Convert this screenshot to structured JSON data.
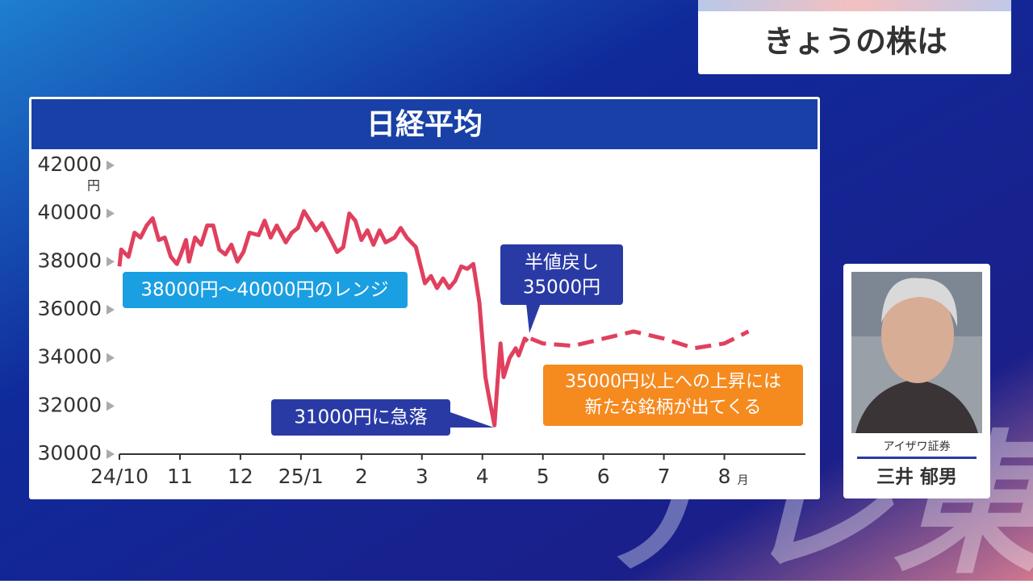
{
  "header": {
    "title": "きょうの株は"
  },
  "chart_data": {
    "type": "line",
    "title": "日経平均",
    "yunit": "円",
    "xunit": "月",
    "xlim": [
      0,
      11.3
    ],
    "xticks": [
      {
        "value": 0,
        "label": "24/10"
      },
      {
        "value": 1,
        "label": "11"
      },
      {
        "value": 2,
        "label": "12"
      },
      {
        "value": 3,
        "label": "25/1"
      },
      {
        "value": 4,
        "label": "2"
      },
      {
        "value": 5,
        "label": "3"
      },
      {
        "value": 6,
        "label": "4"
      },
      {
        "value": 7,
        "label": "5"
      },
      {
        "value": 8,
        "label": "6"
      },
      {
        "value": 9,
        "label": "7"
      },
      {
        "value": 10,
        "label": "8"
      }
    ],
    "ylim": [
      30000,
      42000
    ],
    "yticks": [
      30000,
      32000,
      34000,
      36000,
      38000,
      40000,
      42000
    ],
    "series": [
      {
        "color": "#e0405e",
        "style": "solid",
        "x": [
          0,
          0.03,
          0.15,
          0.25,
          0.35,
          0.45,
          0.55,
          0.65,
          0.75,
          0.85,
          0.95,
          1.0,
          1.1,
          1.15,
          1.25,
          1.35,
          1.45,
          1.55,
          1.65,
          1.75,
          1.85,
          1.95,
          2.05,
          2.15,
          2.3,
          2.4,
          2.5,
          2.6,
          2.75,
          2.85,
          2.95,
          3.05,
          3.15,
          3.25,
          3.35,
          3.5,
          3.6,
          3.7,
          3.8,
          3.9,
          4.0,
          4.1,
          4.2,
          4.3,
          4.4,
          4.55,
          4.65,
          4.75,
          4.9,
          5.0,
          5.05,
          5.15,
          5.25,
          5.35,
          5.45,
          5.55,
          5.65,
          5.75,
          5.85,
          5.95,
          6.05,
          6.1,
          6.2,
          6.25,
          6.3,
          6.35,
          6.45,
          6.55,
          6.6,
          6.7,
          6.75
        ],
        "values": [
          37800,
          38500,
          38200,
          39200,
          39000,
          39500,
          39800,
          38900,
          39000,
          38200,
          37900,
          38200,
          38900,
          38000,
          39000,
          38700,
          39500,
          39500,
          38500,
          38300,
          38700,
          38000,
          38400,
          39200,
          39100,
          39700,
          39000,
          39500,
          38800,
          39200,
          39400,
          40100,
          39700,
          39300,
          39600,
          38900,
          38400,
          38600,
          40000,
          39700,
          38900,
          39300,
          38700,
          39300,
          38800,
          39000,
          39400,
          39000,
          38600,
          37600,
          37100,
          37400,
          36900,
          37300,
          36900,
          37200,
          37800,
          37700,
          37900,
          36300,
          33200,
          32500,
          31200,
          33000,
          34600,
          33200,
          34000,
          34400,
          34100,
          34800,
          34700
        ]
      },
      {
        "color": "#e0405e",
        "style": "dashed",
        "x": [
          6.8,
          7.0,
          7.5,
          8.0,
          8.5,
          9.0,
          9.5,
          10.0,
          10.4
        ],
        "values": [
          34800,
          34600,
          34500,
          34800,
          35100,
          34800,
          34400,
          34600,
          35100
        ]
      }
    ],
    "annotations": {
      "range": "38000円～40000円のレンジ",
      "drop": "31000円に急落",
      "rebound": [
        "半値戻し",
        "35000円"
      ],
      "outlook": [
        "35000円以上への上昇には",
        "新たな銘柄が出てくる"
      ]
    }
  },
  "speaker": {
    "company": "アイザワ証券",
    "name": "三井 郁男"
  },
  "watermark": "テレ東"
}
